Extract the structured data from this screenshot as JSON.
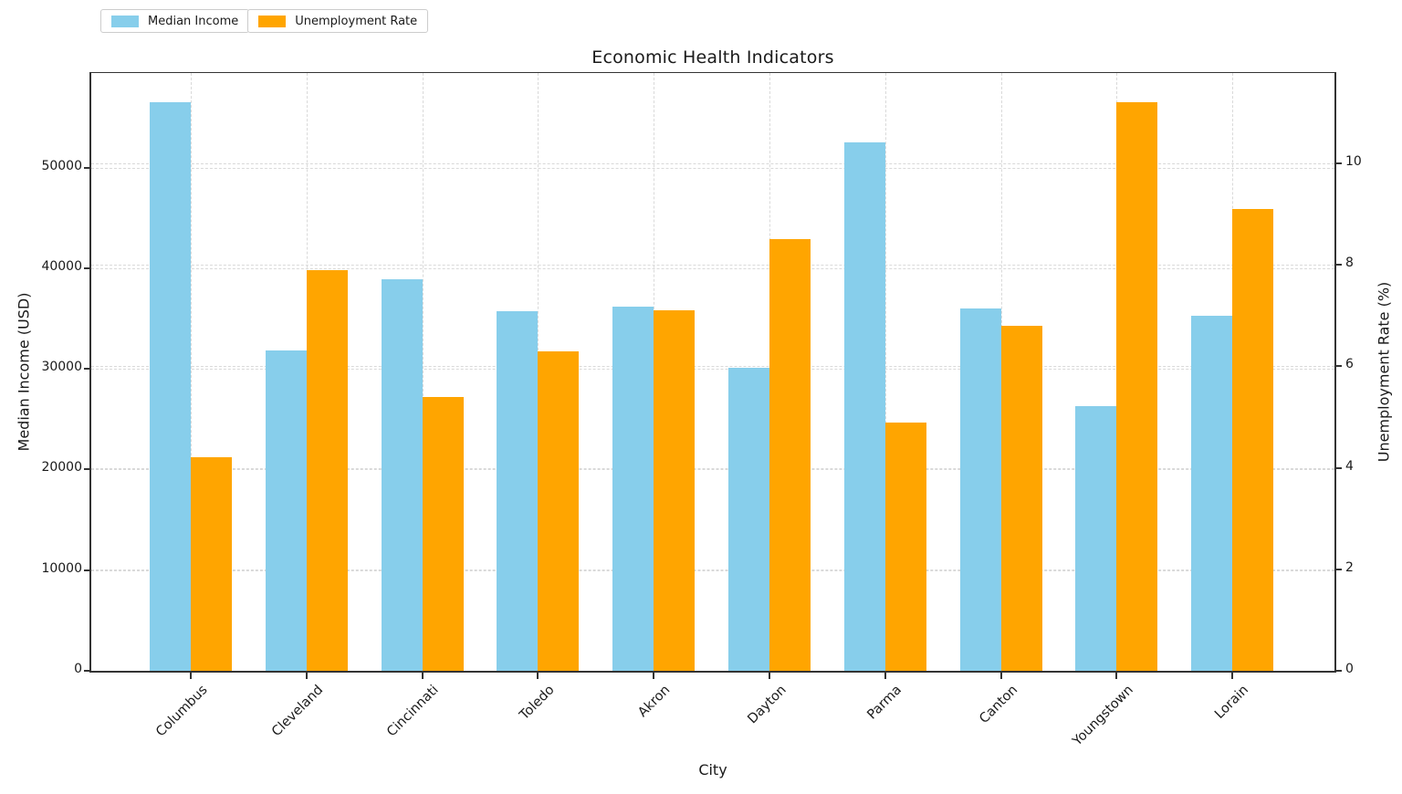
{
  "chart_data": {
    "type": "bar",
    "title": "Economic Health Indicators",
    "xlabel": "City",
    "ylabel_left": "Median Income (USD)",
    "ylabel_right": "Unemployment Rate (%)",
    "categories": [
      "Columbus",
      "Cleveland",
      "Cincinnati",
      "Toledo",
      "Akron",
      "Dayton",
      "Parma",
      "Canton",
      "Youngstown",
      "Lorain"
    ],
    "series": [
      {
        "name": "Median Income",
        "axis": "left",
        "color": "#87CEEB",
        "values": [
          56500,
          31800,
          38900,
          35700,
          36200,
          30100,
          52500,
          36000,
          26300,
          35300
        ]
      },
      {
        "name": "Unemployment Rate",
        "axis": "right",
        "color": "#FFA500",
        "values": [
          4.2,
          7.9,
          5.4,
          6.3,
          7.1,
          8.5,
          4.9,
          6.8,
          11.2,
          9.1
        ]
      }
    ],
    "left_ticks": [
      0,
      10000,
      20000,
      30000,
      40000,
      50000
    ],
    "right_ticks": [
      0,
      2,
      4,
      6,
      8,
      10
    ],
    "ylim_left": [
      0,
      59400
    ],
    "ylim_right": [
      0,
      11.78
    ],
    "grid": "dashed, both axes, below bars",
    "legend_position": "upper-left, two boxes"
  }
}
